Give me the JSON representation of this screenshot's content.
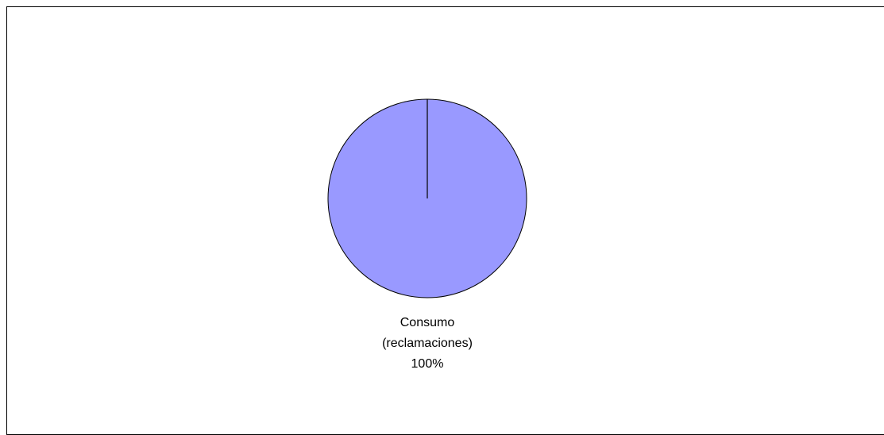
{
  "chart_data": {
    "type": "pie",
    "title": "",
    "slices": [
      {
        "label": "Consumo (reclamaciones)",
        "label_lines": [
          "Consumo",
          "(reclamaciones)"
        ],
        "value": 100,
        "value_label": "100%",
        "color": "#9999ff"
      }
    ],
    "legend": "none",
    "border_color": "#000000"
  }
}
